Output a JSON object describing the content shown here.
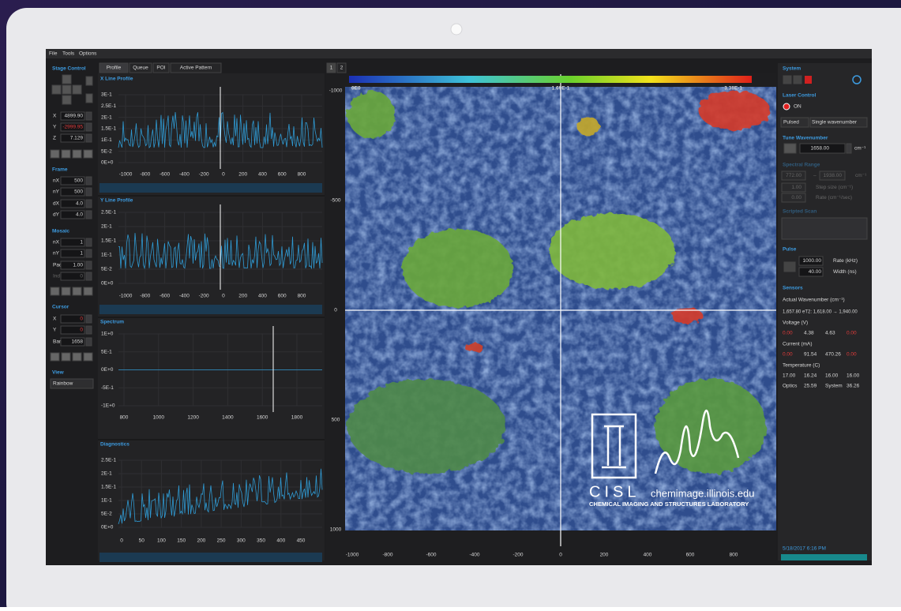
{
  "menu": [
    "File",
    "Tools",
    "Options"
  ],
  "tabs": [
    "Profile",
    "Queue",
    "POI",
    "Active Pattern"
  ],
  "image_tabs": [
    "1",
    "2"
  ],
  "left": {
    "stage_control": {
      "title": "Stage Control",
      "fields": [
        {
          "label": "X",
          "value": "4899.90"
        },
        {
          "label": "Y",
          "value": "-2999.95"
        },
        {
          "label": "Z",
          "value": "7.129"
        }
      ]
    },
    "frame": {
      "title": "Frame",
      "fields": [
        {
          "label": "nX",
          "value": "500"
        },
        {
          "label": "nY",
          "value": "500"
        },
        {
          "label": "dX",
          "value": "4.0"
        },
        {
          "label": "dY",
          "value": "4.0"
        }
      ]
    },
    "mosaic": {
      "title": "Mosaic",
      "fields": [
        {
          "label": "nX",
          "value": "1"
        },
        {
          "label": "nY",
          "value": "1"
        },
        {
          "label": "Pad",
          "value": "1.00"
        },
        {
          "label": "Ind",
          "value": "0"
        }
      ]
    },
    "cursor": {
      "title": "Cursor",
      "fields": [
        {
          "label": "X",
          "value": "0"
        },
        {
          "label": "Y",
          "value": "0"
        },
        {
          "label": "Band",
          "value": "1658"
        }
      ]
    },
    "view": {
      "title": "View",
      "value": "Rainbow"
    }
  },
  "plots": [
    {
      "title": "X Line Profile",
      "yticks": [
        "3E-1",
        "2.5E-1",
        "2E-1",
        "1.5E-1",
        "1E-1",
        "5E-2",
        "0E+0"
      ],
      "xticks": [
        "-1000",
        "-800",
        "-600",
        "-400",
        "-200",
        "0",
        "200",
        "400",
        "600",
        "800"
      ]
    },
    {
      "title": "Y Line Profile",
      "yticks": [
        "2.5E-1",
        "2E-1",
        "1.5E-1",
        "1E-1",
        "5E-2",
        "0E+0"
      ],
      "xticks": [
        "-1000",
        "-800",
        "-600",
        "-400",
        "-200",
        "0",
        "200",
        "400",
        "600",
        "800"
      ]
    },
    {
      "title": "Spectrum",
      "yticks": [
        "1E+0",
        "5E-1",
        "0E+0",
        "-5E-1",
        "-1E+0"
      ],
      "xticks": [
        "800",
        "1000",
        "1200",
        "1400",
        "1600",
        "1800"
      ]
    },
    {
      "title": "Diagnostics",
      "yticks": [
        "2.5E-1",
        "2E-1",
        "1.5E-1",
        "1E-1",
        "5E-2",
        "0E+0"
      ],
      "xticks": [
        "0",
        "50",
        "100",
        "150",
        "200",
        "250",
        "300",
        "350",
        "400",
        "450"
      ]
    }
  ],
  "image": {
    "colorbar": [
      "0E0",
      "1.69E-1",
      "3.38E-1"
    ],
    "yticks": [
      "-1000",
      "-500",
      "0",
      "500",
      "1000"
    ],
    "xticks": [
      "-1000",
      "-800",
      "-600",
      "-400",
      "-200",
      "0",
      "200",
      "400",
      "600",
      "800"
    ],
    "logo": {
      "name": "CISL",
      "url": "chemimage.illinois.edu",
      "lab": "CHEMICAL IMAGING AND STRUCTURES LABORATORY"
    }
  },
  "right": {
    "system": "System",
    "laser_control": "Laser Control",
    "laser_state": "ON",
    "mode": "Pulsed",
    "scan": "Single wavenumber",
    "tune": {
      "title": "Tune Wavenumber",
      "value": "1658.00",
      "unit": "cm⁻¹"
    },
    "spectral_range": {
      "title": "Spectral Range",
      "start": "772.00",
      "dash": "–",
      "end": "1938.00",
      "unit": "cm⁻¹",
      "step": "1.00",
      "step_label": "Step size (cm⁻¹)",
      "rate": "0.00",
      "rate_label": "Rate (cm⁻¹/sec)"
    },
    "scripted_scan": "Scripted Scan",
    "pulse": {
      "title": "Pulse",
      "rate": "1000.00",
      "rate_label": "Rate (kHz)",
      "width": "40.00",
      "width_label": "Width (ns)"
    },
    "sensors": {
      "title": "Sensors",
      "wavenumber_label": "Actual Wavenumber (cm⁻¹)",
      "wavenumber_line": "1,657.80  eT2: 1,618.00 → 1,940.00",
      "voltage": {
        "title": "Voltage (V)",
        "values": [
          "0.00",
          "4.38",
          "4.63",
          "0.00"
        ]
      },
      "current": {
        "title": "Current (mA)",
        "values": [
          "0.00",
          "91.54",
          "470.26",
          "0.00"
        ]
      },
      "temperature": {
        "title": "Temperature (C)",
        "values": [
          "17.00",
          "16.24",
          "16.00",
          "16.00"
        ]
      },
      "optics": [
        "Optics",
        "25.59",
        "System",
        "36.26"
      ]
    },
    "timestamp": "5/18/2017 6:16 PM"
  }
}
